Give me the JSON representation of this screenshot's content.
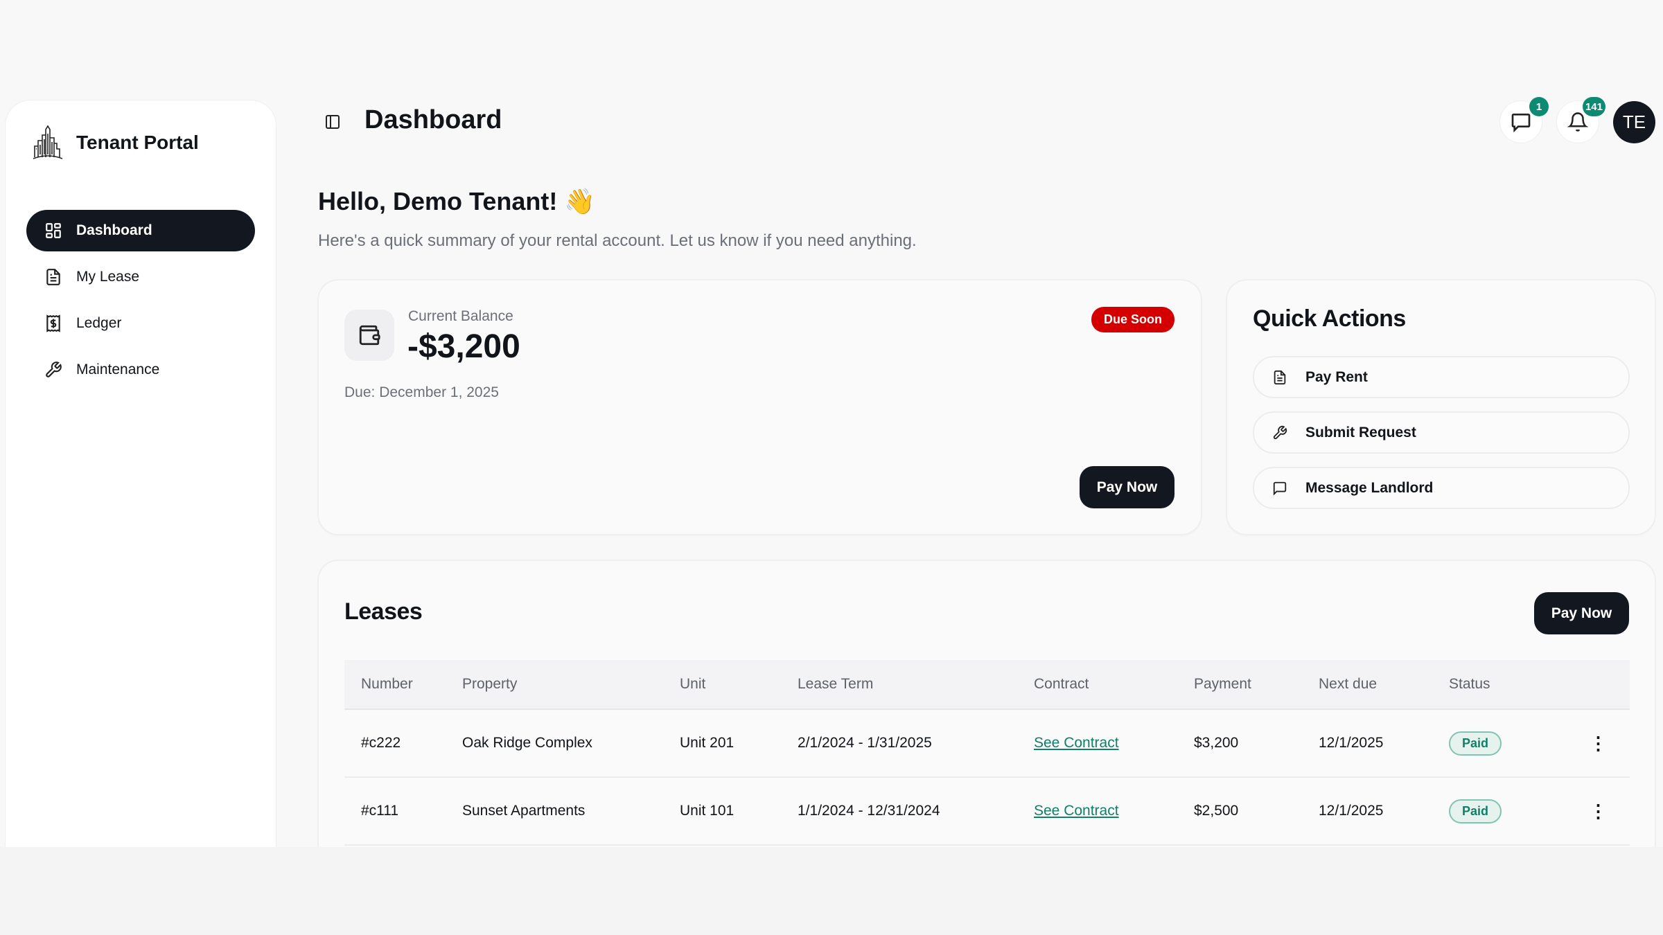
{
  "app": {
    "name": "Tenant Portal"
  },
  "sidebar": {
    "items": [
      {
        "label": "Dashboard",
        "icon": "dashboard-grid-icon",
        "active": true
      },
      {
        "label": "My Lease",
        "icon": "document-icon"
      },
      {
        "label": "Ledger",
        "icon": "receipt-dollar-icon"
      },
      {
        "label": "Maintenance",
        "icon": "wrench-icon"
      }
    ]
  },
  "header": {
    "title": "Dashboard",
    "messages_badge": "1",
    "notifications_badge": "141",
    "avatar_initials": "TE"
  },
  "greeting": {
    "title": "Hello, Demo Tenant! 👋",
    "subtitle": "Here's a quick summary of your rental account. Let us know if you need anything."
  },
  "balance": {
    "label": "Current Balance",
    "value": "-$3,200",
    "due": "Due: December 1, 2025",
    "status": "Due Soon",
    "pay_label": "Pay Now"
  },
  "quick_actions": {
    "title": "Quick Actions",
    "items": [
      {
        "label": "Pay Rent",
        "icon": "document-icon"
      },
      {
        "label": "Submit Request",
        "icon": "wrench-icon"
      },
      {
        "label": "Message Landlord",
        "icon": "message-icon"
      }
    ]
  },
  "leases": {
    "title": "Leases",
    "pay_label": "Pay Now",
    "columns": [
      "Number",
      "Property",
      "Unit",
      "Lease Term",
      "Contract",
      "Payment",
      "Next due",
      "Status"
    ],
    "rows": [
      {
        "number": "#c222",
        "property": "Oak Ridge Complex",
        "unit": "Unit 201",
        "term": "2/1/2024 - 1/31/2025",
        "contract": "See Contract",
        "payment": "$3,200",
        "next_due": "12/1/2025",
        "status": "Paid"
      },
      {
        "number": "#c111",
        "property": "Sunset Apartments",
        "unit": "Unit 101",
        "term": "1/1/2024 - 12/31/2024",
        "contract": "See Contract",
        "payment": "$2,500",
        "next_due": "12/1/2025",
        "status": "Paid"
      }
    ]
  },
  "colors": {
    "primary": "#131820",
    "accent": "#0f8a72",
    "danger": "#d40000"
  }
}
